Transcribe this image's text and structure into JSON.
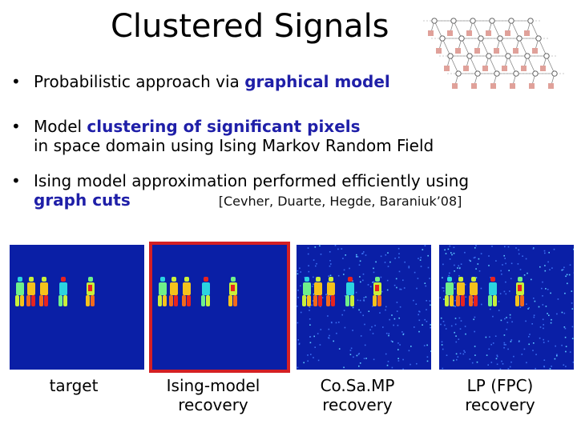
{
  "title": "Clustered Signals",
  "bullets": [
    {
      "pre": "Probabilistic approach via ",
      "hl": "graphical model"
    },
    {
      "pre": "Model ",
      "hl": "clustering of significant pixels",
      "line2": "in space domain using Ising Markov Random Field"
    },
    {
      "pre": "Ising model approximation performed efficiently using",
      "hl2": "graph cuts",
      "cite": "[Cevher, Duarte, Hegde, Baraniuk’08]"
    }
  ],
  "panels": [
    {
      "caption1": "target",
      "caption2": ""
    },
    {
      "caption1": "Ising-model",
      "caption2": "recovery"
    },
    {
      "caption1": "Co.Sa.MP",
      "caption2": "recovery"
    },
    {
      "caption1": "LP (FPC)",
      "caption2": "recovery"
    }
  ],
  "colors": {
    "highlight": "#1f1fa8",
    "selection_border": "#d42024",
    "image_background": "#0a1fa6",
    "graph_node_square": "#e0a19a"
  }
}
